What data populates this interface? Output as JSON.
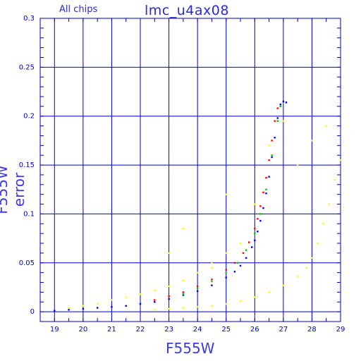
{
  "chart_data": {
    "type": "scatter",
    "title": "lmc_u4ax08",
    "subtitle": "All chips",
    "xlabel": "F555W",
    "ylabel": "F555W error",
    "xlim": [
      18.5,
      29
    ],
    "ylim": [
      -0.01,
      0.3
    ],
    "x_ticks": [
      19,
      20,
      21,
      22,
      23,
      24,
      25,
      26,
      27,
      28,
      29
    ],
    "y_ticks": [
      0,
      0.05,
      0.1,
      0.15,
      0.2,
      0.25,
      0.3
    ],
    "y_tick_labels": [
      "0",
      "0.05",
      "0.1",
      "0.15",
      "0.2",
      "0.25",
      "0.3"
    ],
    "grid": true,
    "series": [
      {
        "color": "#0000ff",
        "points": [
          [
            19.0,
            0.001
          ],
          [
            19.5,
            0.002
          ],
          [
            20.0,
            0.003
          ],
          [
            20.5,
            0.004
          ],
          [
            21.0,
            0.005
          ],
          [
            21.5,
            0.006
          ],
          [
            22.0,
            0.008
          ],
          [
            22.5,
            0.01
          ],
          [
            23.0,
            0.013
          ],
          [
            23.5,
            0.017
          ],
          [
            24.0,
            0.021
          ],
          [
            24.5,
            0.027
          ],
          [
            25.0,
            0.035
          ],
          [
            25.3,
            0.041
          ],
          [
            25.5,
            0.047
          ],
          [
            25.7,
            0.055
          ],
          [
            25.9,
            0.066
          ],
          [
            26.0,
            0.073
          ],
          [
            26.1,
            0.082
          ],
          [
            26.2,
            0.093
          ],
          [
            26.3,
            0.106
          ],
          [
            26.4,
            0.121
          ],
          [
            26.5,
            0.138
          ],
          [
            26.6,
            0.158
          ],
          [
            26.7,
            0.178
          ],
          [
            26.8,
            0.198
          ],
          [
            26.9,
            0.212
          ],
          [
            27.0,
            0.215
          ],
          [
            27.1,
            0.214
          ]
        ]
      },
      {
        "color": "#ff0000",
        "points": [
          [
            22.5,
            0.012
          ],
          [
            23.0,
            0.016
          ],
          [
            23.5,
            0.02
          ],
          [
            24.0,
            0.026
          ],
          [
            24.5,
            0.033
          ],
          [
            25.0,
            0.043
          ],
          [
            25.3,
            0.05
          ],
          [
            25.6,
            0.06
          ],
          [
            25.8,
            0.071
          ],
          [
            26.0,
            0.085
          ],
          [
            26.1,
            0.095
          ],
          [
            26.2,
            0.108
          ],
          [
            26.3,
            0.122
          ],
          [
            26.4,
            0.137
          ],
          [
            26.5,
            0.155
          ],
          [
            26.6,
            0.175
          ],
          [
            26.7,
            0.195
          ],
          [
            26.8,
            0.208
          ]
        ]
      },
      {
        "color": "#00cc00",
        "points": [
          [
            23.5,
            0.018
          ],
          [
            24.0,
            0.024
          ],
          [
            24.5,
            0.031
          ],
          [
            25.0,
            0.04
          ],
          [
            25.4,
            0.05
          ],
          [
            25.7,
            0.063
          ],
          [
            26.0,
            0.08
          ],
          [
            26.2,
            0.1
          ],
          [
            26.4,
            0.125
          ],
          [
            26.6,
            0.16
          ],
          [
            26.8,
            0.195
          ],
          [
            26.9,
            0.21
          ]
        ]
      },
      {
        "color": "#ffff00",
        "points": [
          [
            19.5,
            0.004
          ],
          [
            20.0,
            0.006
          ],
          [
            20.5,
            0.008
          ],
          [
            21.0,
            0.012
          ],
          [
            21.5,
            0.015
          ],
          [
            22.0,
            0.018
          ],
          [
            22.5,
            0.022
          ],
          [
            23.0,
            0.026
          ],
          [
            23.5,
            0.032
          ],
          [
            24.0,
            0.04
          ],
          [
            24.5,
            0.05
          ],
          [
            25.0,
            0.06
          ],
          [
            25.5,
            0.07
          ],
          [
            26.0,
            0.11
          ],
          [
            26.5,
            0.17
          ],
          [
            27.0,
            0.195
          ],
          [
            22.5,
            0.002
          ],
          [
            23.0,
            0.003
          ],
          [
            23.5,
            0.004
          ],
          [
            24.0,
            0.005
          ],
          [
            24.5,
            0.006
          ],
          [
            25.0,
            0.008
          ],
          [
            25.5,
            0.011
          ],
          [
            26.0,
            0.015
          ],
          [
            26.5,
            0.02
          ],
          [
            27.0,
            0.027
          ],
          [
            27.5,
            0.036
          ],
          [
            27.8,
            0.045
          ],
          [
            28.0,
            0.055
          ],
          [
            28.2,
            0.07
          ],
          [
            28.4,
            0.09
          ],
          [
            28.6,
            0.11
          ],
          [
            28.8,
            0.135
          ],
          [
            29.0,
            0.155
          ],
          [
            23.0,
            0.06
          ],
          [
            23.5,
            0.085
          ],
          [
            24.5,
            0.045
          ],
          [
            25.0,
            0.12
          ],
          [
            27.5,
            0.15
          ],
          [
            28.0,
            0.175
          ],
          [
            28.5,
            0.19
          ]
        ]
      }
    ]
  }
}
